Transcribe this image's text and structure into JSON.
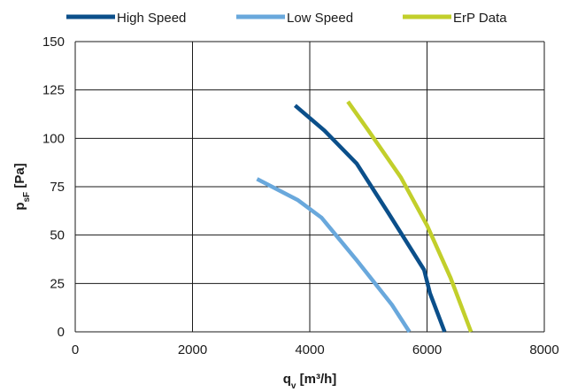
{
  "chart_data": {
    "type": "line",
    "xlabel": "q",
    "xlabel_sub": "v",
    "xlabel_unit": " [m³/h]",
    "ylabel": "p",
    "ylabel_sub": "sF",
    "ylabel_unit": " [Pa]",
    "xlim": [
      0,
      8000
    ],
    "ylim": [
      0,
      150
    ],
    "xticks": [
      "0",
      "2000",
      "4000",
      "6000",
      "8000"
    ],
    "yticks": [
      "0",
      "25",
      "50",
      "75",
      "100",
      "125",
      "150"
    ],
    "grid": true,
    "legend_position": "top",
    "series": [
      {
        "name": "High Speed",
        "color": "#0b4f8a",
        "points": [
          [
            3750,
            117
          ],
          [
            4250,
            104
          ],
          [
            4800,
            87
          ],
          [
            5350,
            61
          ],
          [
            5950,
            32
          ],
          [
            6050,
            20
          ],
          [
            6300,
            0
          ]
        ]
      },
      {
        "name": "Low Speed",
        "color": "#69a8dc",
        "points": [
          [
            3100,
            79
          ],
          [
            3800,
            68
          ],
          [
            4200,
            59
          ],
          [
            4800,
            37
          ],
          [
            5400,
            14
          ],
          [
            5700,
            0
          ]
        ]
      },
      {
        "name": "ErP Data",
        "color": "#c2cf2b",
        "points": [
          [
            4650,
            119
          ],
          [
            5000,
            104
          ],
          [
            5550,
            80
          ],
          [
            6000,
            55
          ],
          [
            6400,
            28
          ],
          [
            6750,
            0
          ]
        ]
      }
    ]
  }
}
